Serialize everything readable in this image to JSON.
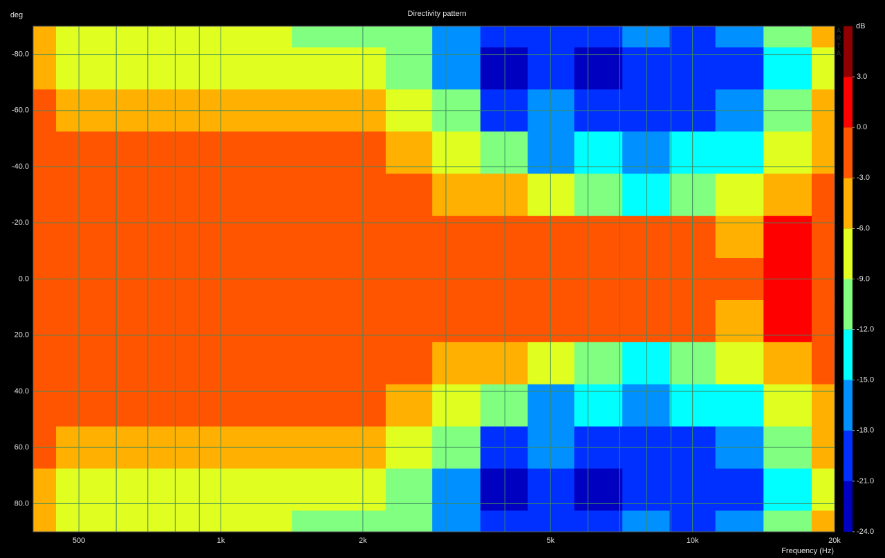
{
  "chart_data": {
    "type": "heatmap",
    "title": "Directivity pattern",
    "ylabel": "deg",
    "xlabel": "Frequency (Hz)",
    "colorbar_label": "dB",
    "watermark": [
      "A",
      "R",
      "T",
      "A"
    ],
    "xscale": "log",
    "xlim": [
      400,
      20000
    ],
    "ylim": [
      -90,
      90
    ],
    "xticks": [
      {
        "value": 500,
        "label": "500"
      },
      {
        "value": 1000,
        "label": "1k"
      },
      {
        "value": 2000,
        "label": "2k"
      },
      {
        "value": 5000,
        "label": "5k"
      },
      {
        "value": 10000,
        "label": "10k"
      },
      {
        "value": 20000,
        "label": "20k"
      }
    ],
    "x_minor_ticks": [
      600,
      700,
      800,
      900,
      3000,
      4000,
      6000,
      7000,
      8000,
      9000
    ],
    "yticks": [
      {
        "value": -80,
        "label": "-80.0"
      },
      {
        "value": -60,
        "label": "-60.0"
      },
      {
        "value": -40,
        "label": "-40.0"
      },
      {
        "value": -20,
        "label": "-20.0"
      },
      {
        "value": 0,
        "label": "0.0"
      },
      {
        "value": 20,
        "label": "20.0"
      },
      {
        "value": 40,
        "label": "40.0"
      },
      {
        "value": 60,
        "label": "60.0"
      },
      {
        "value": 80,
        "label": "80.0"
      }
    ],
    "grid": true,
    "grid_color": "#3e8a5e",
    "levels": [
      -24,
      -21,
      -18,
      -15,
      -12,
      -9,
      -6,
      -3,
      0,
      3,
      6
    ],
    "colors": [
      "#0000c0",
      "#0030ff",
      "#0090ff",
      "#00ffff",
      "#80ff80",
      "#e0ff20",
      "#ffb000",
      "#ff5500",
      "#ff0000",
      "#900000"
    ],
    "colorbar_ticks": [
      {
        "value": 3,
        "label": "3.0"
      },
      {
        "value": 0,
        "label": "0.0"
      },
      {
        "value": -3,
        "label": "-3.0"
      },
      {
        "value": -6,
        "label": "-6.0"
      },
      {
        "value": -9,
        "label": "-9.0"
      },
      {
        "value": -12,
        "label": "-12.0"
      },
      {
        "value": -15,
        "label": "-15.0"
      },
      {
        "value": -18,
        "label": "-18.0"
      },
      {
        "value": -21,
        "label": "-21.0"
      },
      {
        "value": -24,
        "label": "-24.0"
      }
    ],
    "x": [
      400,
      500,
      630,
      800,
      1000,
      1250,
      1600,
      2000,
      2500,
      3150,
      4000,
      5000,
      6300,
      8000,
      10000,
      12500,
      16000,
      20000
    ],
    "y": [
      -90,
      -75,
      -60,
      -45,
      -30,
      -15,
      0,
      15,
      30,
      45,
      60,
      75,
      90
    ],
    "z": [
      [
        -5.5,
        -7,
        -8,
        -8,
        -7.5,
        -8,
        -9.5,
        -10.5,
        -12,
        -18,
        -21,
        -19,
        -21,
        -18,
        -20,
        -17,
        -12,
        -5
      ],
      [
        -5,
        -6.5,
        -7,
        -7,
        -6.5,
        -7,
        -7.5,
        -8,
        -11,
        -16,
        -22,
        -20,
        -22,
        -20,
        -21,
        -19,
        -14,
        -7
      ],
      [
        -2.5,
        -4,
        -4,
        -4.5,
        -3.5,
        -4,
        -4,
        -5,
        -7,
        -11,
        -20,
        -18,
        -21,
        -19,
        -19,
        -18,
        -12,
        -6
      ],
      [
        -1.5,
        -1.5,
        -1.5,
        -1.5,
        -1.5,
        -1.5,
        -1.5,
        -2.5,
        -4,
        -7,
        -11,
        -16,
        -15,
        -17,
        -15,
        -14,
        -9,
        -4
      ],
      [
        -1,
        -1,
        -1,
        -1,
        -1,
        -1,
        -1,
        -1.5,
        -2,
        -3.5,
        -5,
        -8,
        -10,
        -13,
        -10,
        -9,
        -5,
        -2
      ],
      [
        -1,
        -1,
        -1,
        -1,
        -1,
        -1,
        -1,
        -1,
        -1,
        -1.5,
        -2,
        -2.5,
        -2.5,
        -3,
        -2.5,
        -4,
        0,
        -2
      ],
      [
        -1,
        -1,
        -1,
        -1,
        -1,
        -1,
        -1,
        -1,
        -1,
        -1.5,
        -2,
        -2,
        -2,
        -2,
        -2,
        -2,
        1,
        -1
      ],
      [
        -1,
        -1,
        -1,
        -1,
        -1,
        -1,
        -1,
        -1,
        -1,
        -1.5,
        -2,
        -2.5,
        -2.5,
        -3,
        -2.5,
        -4,
        0,
        -2
      ],
      [
        -1,
        -1,
        -1,
        -1,
        -1,
        -1,
        -1,
        -1.5,
        -2,
        -3.5,
        -5,
        -8,
        -10,
        -13,
        -10,
        -9,
        -5,
        -2
      ],
      [
        -1.5,
        -1.5,
        -1.5,
        -1.5,
        -1.5,
        -1.5,
        -1.5,
        -2.5,
        -4,
        -7,
        -11,
        -16,
        -15,
        -17,
        -15,
        -14,
        -9,
        -4
      ],
      [
        -2.5,
        -4,
        -4,
        -4.5,
        -3.5,
        -4,
        -4,
        -5,
        -7,
        -11,
        -20,
        -18,
        -21,
        -19,
        -19,
        -18,
        -12,
        -6
      ],
      [
        -5,
        -6.5,
        -7,
        -7,
        -6.5,
        -7,
        -7.5,
        -8,
        -11,
        -16,
        -22,
        -20,
        -22,
        -20,
        -21,
        -19,
        -14,
        -7
      ],
      [
        -5.5,
        -7,
        -8,
        -8,
        -7.5,
        -8,
        -9.5,
        -10.5,
        -12,
        -18,
        -21,
        -19,
        -21,
        -18,
        -20,
        -17,
        -12,
        -5
      ]
    ]
  }
}
